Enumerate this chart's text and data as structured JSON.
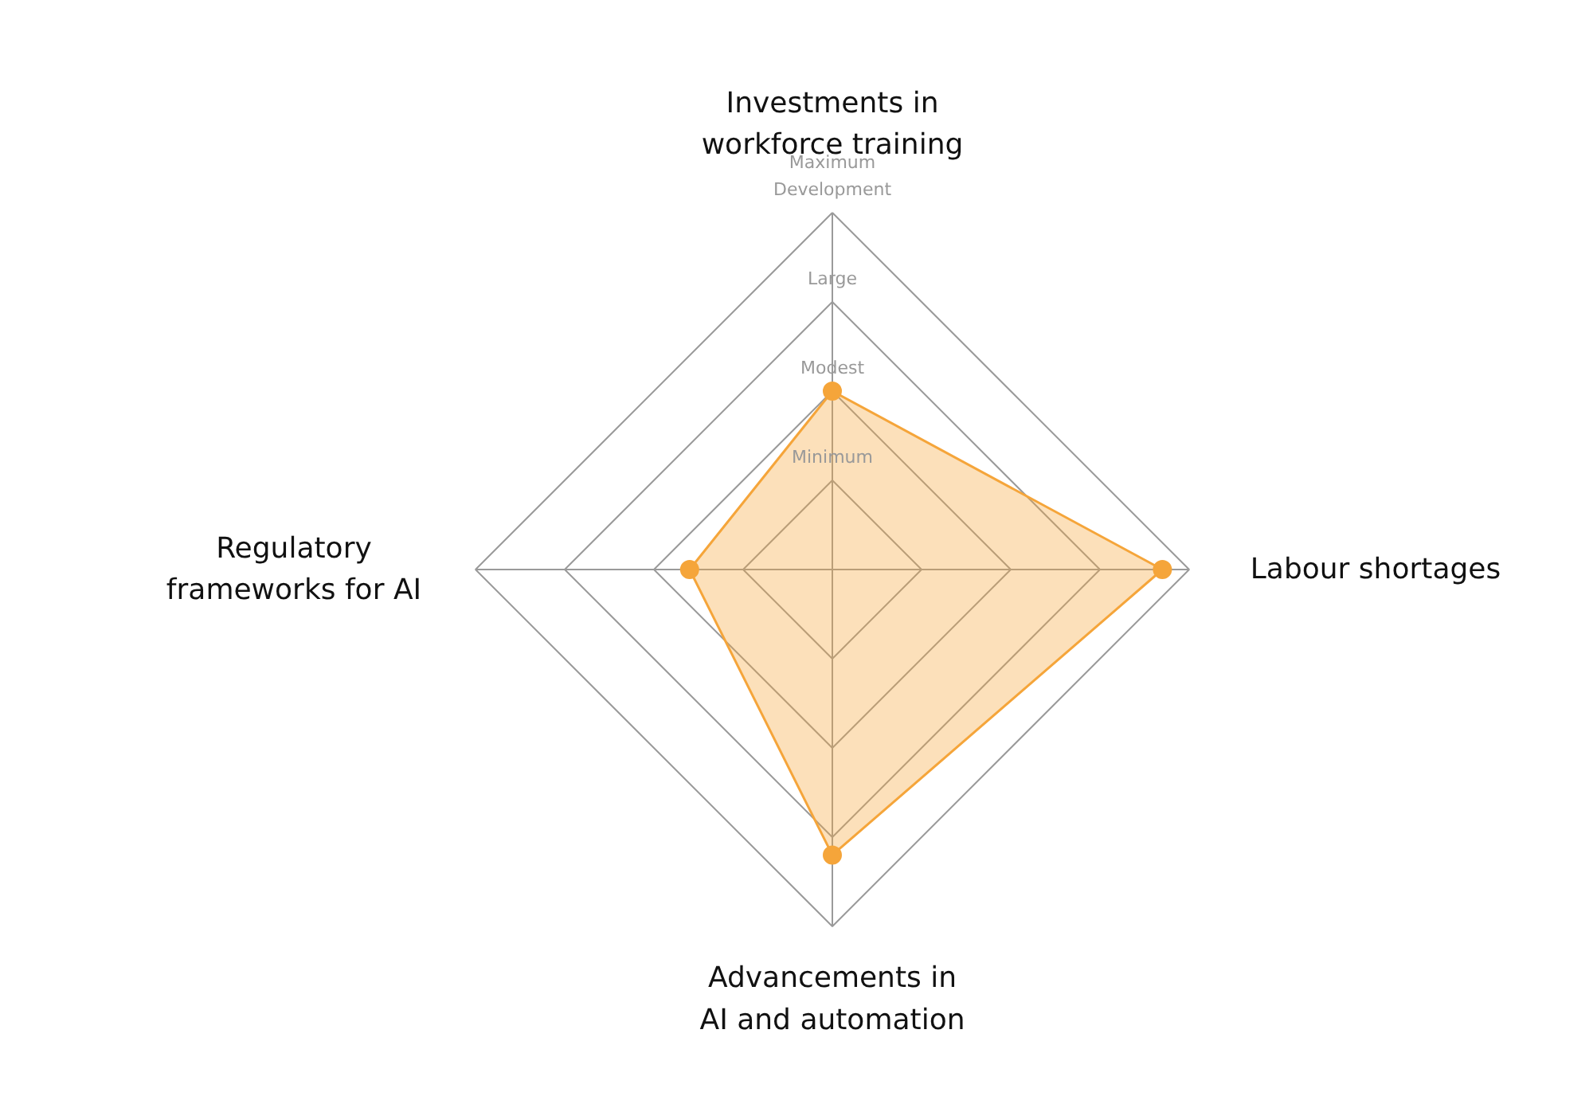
{
  "chart_data": {
    "type": "radar",
    "categories": [
      "Investments in\nworkforce training",
      "Labour shortages",
      "Advancements in\nAI and automation",
      "Regulatory\nframeworks for AI"
    ],
    "series": [
      {
        "color": "#f5a53a",
        "values": [
          2,
          3.7,
          3.2,
          1.6
        ]
      }
    ],
    "ylim": [
      0,
      4
    ],
    "yticks": [
      {
        "value": 1,
        "label": "Minimum"
      },
      {
        "value": 2,
        "label": "Modest"
      },
      {
        "value": 3,
        "label": "Large"
      },
      {
        "value": 4,
        "label": "Maximum\nDevelopment"
      }
    ],
    "marker": "circle"
  }
}
